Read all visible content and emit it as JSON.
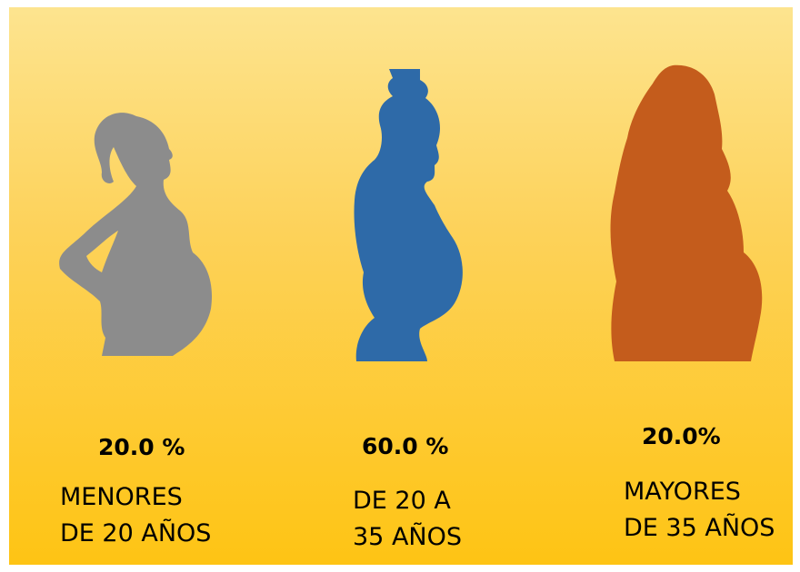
{
  "groups": [
    {
      "percent": "20.0 %",
      "label": [
        "MENORES",
        "DE 20 AÑOS"
      ]
    },
    {
      "percent": "60.0 %",
      "label": [
        "DE 20 A",
        "35 AÑOS"
      ]
    },
    {
      "percent": "20.0%",
      "label": [
        "MAYORES",
        "DE 35 AÑOS"
      ]
    }
  ]
}
